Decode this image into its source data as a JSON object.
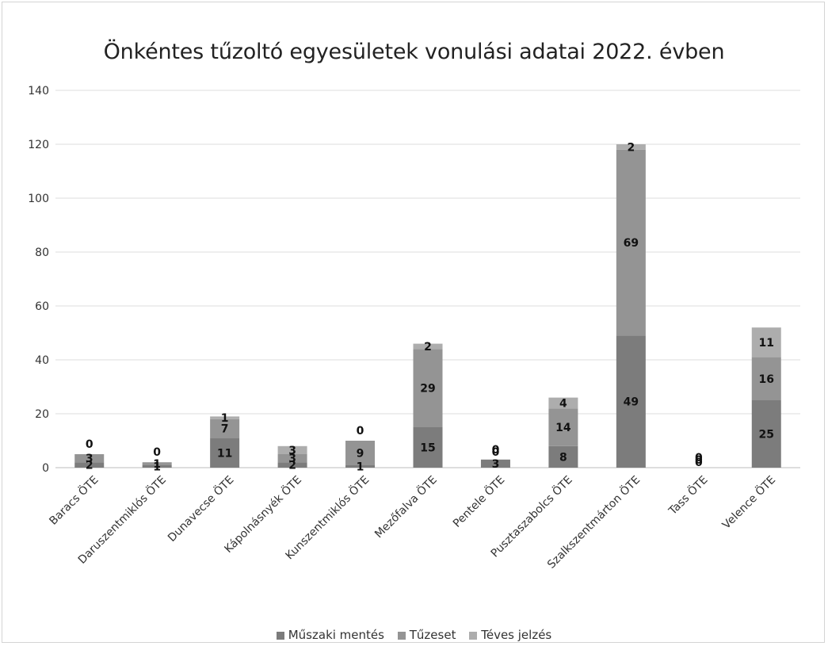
{
  "chart_data": {
    "type": "bar",
    "stacked": true,
    "title": "Önkéntes tűzoltó egyesületek vonulási adatai 2022. évben",
    "xlabel": "",
    "ylabel": "",
    "ylim": [
      0,
      140
    ],
    "yticks": [
      0,
      20,
      40,
      60,
      80,
      100,
      120,
      140
    ],
    "grid": true,
    "legend_position": "bottom",
    "categories": [
      "Baracs ÖTE",
      "Daruszentmiklós ÖTE",
      "Dunavecse ÖTE",
      "Kápolnásnyék ÖTE",
      "Kunszentmiklós ÖTE",
      "Mezőfalva ÖTE",
      "Pentele ÖTE",
      "Pusztaszabolcs ÖTE",
      "Szalkszentmárton ÖTE",
      "Tass ÖTE",
      "Velence ÖTE"
    ],
    "series": [
      {
        "name": "Műszaki mentés",
        "color": "#7c7c7c",
        "values": [
          2,
          1,
          11,
          2,
          1,
          15,
          3,
          8,
          49,
          0,
          25
        ]
      },
      {
        "name": "Tűzeset",
        "color": "#949494",
        "values": [
          3,
          1,
          7,
          3,
          9,
          29,
          0,
          14,
          69,
          0,
          16
        ]
      },
      {
        "name": "Téves jelzés",
        "color": "#adadad",
        "values": [
          0,
          0,
          1,
          3,
          0,
          2,
          0,
          4,
          2,
          0,
          11
        ]
      }
    ]
  }
}
